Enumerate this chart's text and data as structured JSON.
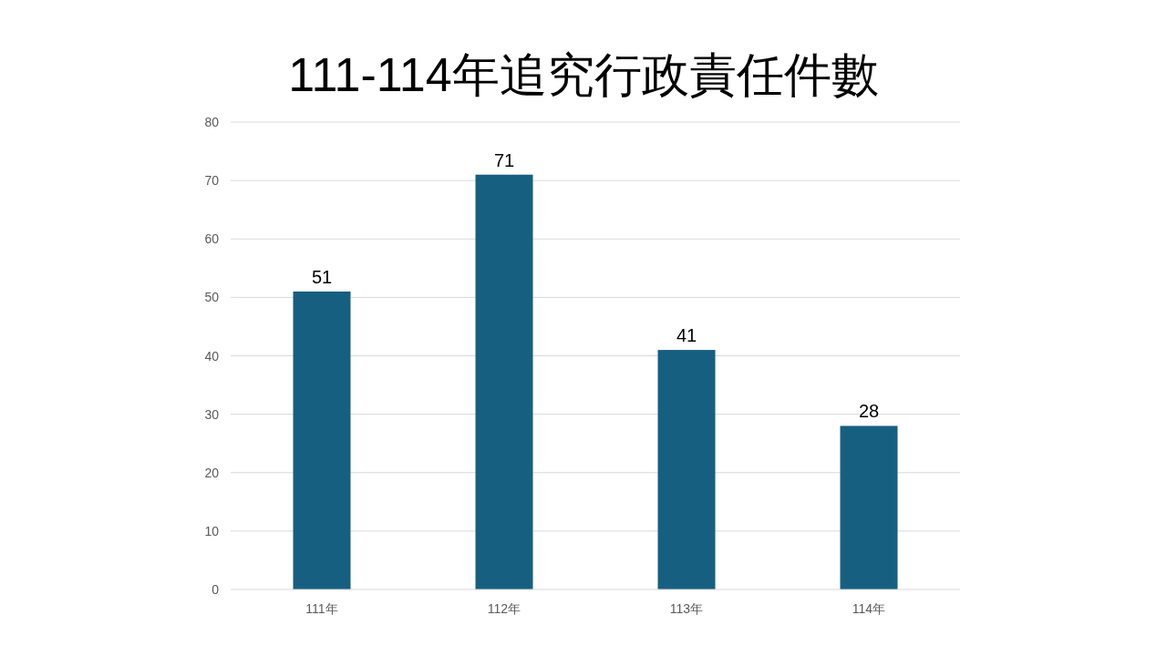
{
  "chart_data": {
    "type": "bar",
    "title": "111-114年追究行政責任件數",
    "categories": [
      "111年",
      "112年",
      "113年",
      "114年"
    ],
    "values": [
      51,
      71,
      41,
      28
    ],
    "color": "#175f80",
    "ylim": [
      0,
      80
    ],
    "yticks": [
      0,
      10,
      20,
      30,
      40,
      50,
      60,
      70,
      80
    ],
    "grid": "y",
    "data_labels": true
  }
}
